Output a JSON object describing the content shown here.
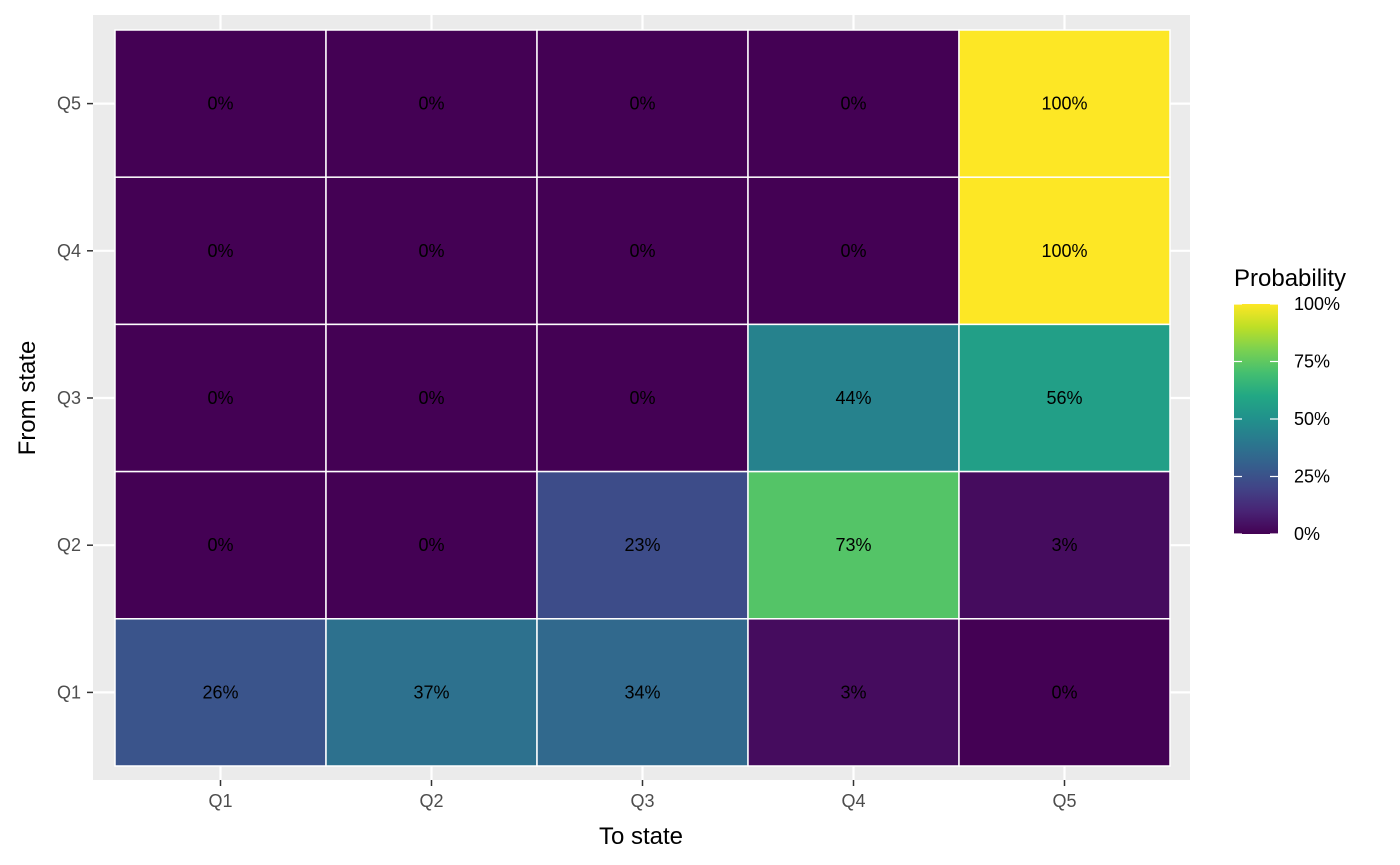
{
  "chart_data": {
    "type": "heatmap",
    "xlabel": "To state",
    "ylabel": "From state",
    "x_categories": [
      "Q1",
      "Q2",
      "Q3",
      "Q4",
      "Q5"
    ],
    "y_categories": [
      "Q1",
      "Q2",
      "Q3",
      "Q4",
      "Q5"
    ],
    "cells": [
      {
        "from": "Q5",
        "to": "Q1",
        "value": 0,
        "label": "0%"
      },
      {
        "from": "Q5",
        "to": "Q2",
        "value": 0,
        "label": "0%"
      },
      {
        "from": "Q5",
        "to": "Q3",
        "value": 0,
        "label": "0%"
      },
      {
        "from": "Q5",
        "to": "Q4",
        "value": 0,
        "label": "0%"
      },
      {
        "from": "Q5",
        "to": "Q5",
        "value": 100,
        "label": "100%"
      },
      {
        "from": "Q4",
        "to": "Q1",
        "value": 0,
        "label": "0%"
      },
      {
        "from": "Q4",
        "to": "Q2",
        "value": 0,
        "label": "0%"
      },
      {
        "from": "Q4",
        "to": "Q3",
        "value": 0,
        "label": "0%"
      },
      {
        "from": "Q4",
        "to": "Q4",
        "value": 0,
        "label": "0%"
      },
      {
        "from": "Q4",
        "to": "Q5",
        "value": 100,
        "label": "100%"
      },
      {
        "from": "Q3",
        "to": "Q1",
        "value": 0,
        "label": "0%"
      },
      {
        "from": "Q3",
        "to": "Q2",
        "value": 0,
        "label": "0%"
      },
      {
        "from": "Q3",
        "to": "Q3",
        "value": 0,
        "label": "0%"
      },
      {
        "from": "Q3",
        "to": "Q4",
        "value": 44,
        "label": "44%"
      },
      {
        "from": "Q3",
        "to": "Q5",
        "value": 56,
        "label": "56%"
      },
      {
        "from": "Q2",
        "to": "Q1",
        "value": 0,
        "label": "0%"
      },
      {
        "from": "Q2",
        "to": "Q2",
        "value": 0,
        "label": "0%"
      },
      {
        "from": "Q2",
        "to": "Q3",
        "value": 23,
        "label": "23%"
      },
      {
        "from": "Q2",
        "to": "Q4",
        "value": 73,
        "label": "73%"
      },
      {
        "from": "Q2",
        "to": "Q5",
        "value": 3,
        "label": "3%"
      },
      {
        "from": "Q1",
        "to": "Q1",
        "value": 26,
        "label": "26%"
      },
      {
        "from": "Q1",
        "to": "Q2",
        "value": 37,
        "label": "37%"
      },
      {
        "from": "Q1",
        "to": "Q3",
        "value": 34,
        "label": "34%"
      },
      {
        "from": "Q1",
        "to": "Q4",
        "value": 3,
        "label": "3%"
      },
      {
        "from": "Q1",
        "to": "Q5",
        "value": 0,
        "label": "0%"
      }
    ],
    "legend": {
      "title": "Probability",
      "ticks": [
        {
          "value": 100,
          "label": "100%"
        },
        {
          "value": 75,
          "label": "75%"
        },
        {
          "value": 50,
          "label": "50%"
        },
        {
          "value": 25,
          "label": "25%"
        },
        {
          "value": 0,
          "label": "0%"
        }
      ],
      "placement": "right",
      "range": [
        0,
        100
      ]
    },
    "colorscale": "viridis",
    "panel_background": "#ebebeb",
    "grid_color": "#ffffff",
    "grid": true
  }
}
